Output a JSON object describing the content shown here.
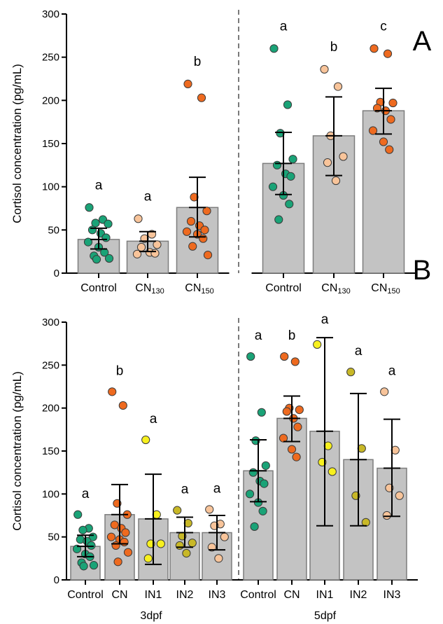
{
  "chart_data": [
    {
      "type": "bar",
      "panel_label": "A",
      "ylabel": "Cortisol concentration (pg/mL)",
      "ylim": [
        0,
        300
      ],
      "yticks": [
        0,
        50,
        100,
        150,
        200,
        250,
        300
      ],
      "groups": [
        {
          "name": "",
          "bars": [
            {
              "label": "Control",
              "sub": "",
              "mean": 39,
              "err": [
                28,
                52
              ],
              "letter": "a",
              "color": "#1aa377",
              "points": [
                76,
                62,
                58,
                57,
                50,
                46,
                41,
                36,
                30,
                24,
                20,
                17,
                16
              ]
            },
            {
              "label": "CN",
              "sub": "130",
              "mean": 37,
              "err": [
                25,
                48
              ],
              "letter": "a",
              "color": "#f8c49a",
              "points": [
                63,
                45,
                40,
                33,
                30,
                24,
                23,
                22
              ]
            },
            {
              "label": "CN",
              "sub": "150",
              "mean": 76,
              "err": [
                42,
                111
              ],
              "letter": "b",
              "color": "#ee6a1f",
              "points": [
                219,
                203,
                88,
                72,
                60,
                55,
                50,
                48,
                45,
                40,
                31,
                21
              ]
            }
          ]
        },
        {
          "name": "",
          "bars": [
            {
              "label": "Control",
              "sub": "",
              "mean": 127,
              "err": [
                91,
                163
              ],
              "letter": "a",
              "color": "#1aa377",
              "points": [
                260,
                195,
                162,
                132,
                125,
                115,
                112,
                100,
                90,
                80,
                62
              ]
            },
            {
              "label": "CN",
              "sub": "130",
              "mean": 159,
              "err": [
                113,
                204
              ],
              "letter": "b",
              "color": "#f8c49a",
              "points": [
                236,
                216,
                159,
                135,
                128,
                107
              ]
            },
            {
              "label": "CN",
              "sub": "150",
              "mean": 188,
              "err": [
                161,
                214
              ],
              "letter": "c",
              "color": "#ee6a1f",
              "points": [
                260,
                254,
                198,
                197,
                191,
                188,
                178,
                165,
                152,
                143
              ]
            }
          ]
        }
      ]
    },
    {
      "type": "bar",
      "panel_label": "B",
      "ylabel": "Cortisol concentration (pg/mL)",
      "ylim": [
        0,
        300
      ],
      "yticks": [
        0,
        50,
        100,
        150,
        200,
        250,
        300
      ],
      "groups": [
        {
          "name": "3dpf",
          "bars": [
            {
              "label": "Control",
              "sub": "",
              "mean": 39,
              "err": [
                27,
                52
              ],
              "letter": "a",
              "color": "#1aa377",
              "points": [
                76,
                60,
                58,
                50,
                47,
                45,
                40,
                36,
                30,
                27,
                20,
                17,
                16
              ]
            },
            {
              "label": "CN",
              "sub": "",
              "mean": 76,
              "err": [
                42,
                111
              ],
              "letter": "b",
              "color": "#ee6a1f",
              "points": [
                219,
                203,
                89,
                76,
                64,
                60,
                55,
                50,
                47,
                44,
                40,
                32,
                21
              ]
            },
            {
              "label": "IN1",
              "sub": "",
              "mean": 71,
              "err": [
                18,
                123
              ],
              "letter": "a",
              "color": "#f7f01e",
              "points": [
                163,
                76,
                42,
                42,
                25
              ]
            },
            {
              "label": "IN2",
              "sub": "",
              "mean": 55,
              "err": [
                38,
                73
              ],
              "letter": "a",
              "color": "#c8b827",
              "points": [
                81,
                66,
                51,
                43,
                40,
                31
              ]
            },
            {
              "label": "IN3",
              "sub": "",
              "mean": 55,
              "err": [
                35,
                75
              ],
              "letter": "a",
              "color": "#f8c49a",
              "points": [
                82,
                65,
                63,
                50,
                38,
                25
              ]
            }
          ]
        },
        {
          "name": "5dpf",
          "bars": [
            {
              "label": "Control",
              "sub": "",
              "mean": 127,
              "err": [
                91,
                163
              ],
              "letter": "a",
              "color": "#1aa377",
              "points": [
                260,
                195,
                162,
                133,
                125,
                115,
                112,
                100,
                90,
                80,
                62
              ]
            },
            {
              "label": "CN",
              "sub": "",
              "mean": 188,
              "err": [
                161,
                214
              ],
              "letter": "b",
              "color": "#ee6a1f",
              "points": [
                260,
                254,
                200,
                198,
                196,
                188,
                178,
                165,
                152,
                143
              ]
            },
            {
              "label": "IN1",
              "sub": "",
              "mean": 173,
              "err": [
                63,
                282
              ],
              "letter": "a",
              "color": "#f7f01e",
              "points": [
                274,
                156,
                137,
                126
              ]
            },
            {
              "label": "IN2",
              "sub": "",
              "mean": 140,
              "err": [
                63,
                217
              ],
              "letter": "a",
              "color": "#c8b827",
              "points": [
                242,
                153,
                98,
                67
              ]
            },
            {
              "label": "IN3",
              "sub": "",
              "mean": 130,
              "err": [
                74,
                187
              ],
              "letter": "a",
              "color": "#f8c49a",
              "points": [
                219,
                151,
                107,
                98,
                75
              ]
            }
          ]
        }
      ]
    }
  ]
}
